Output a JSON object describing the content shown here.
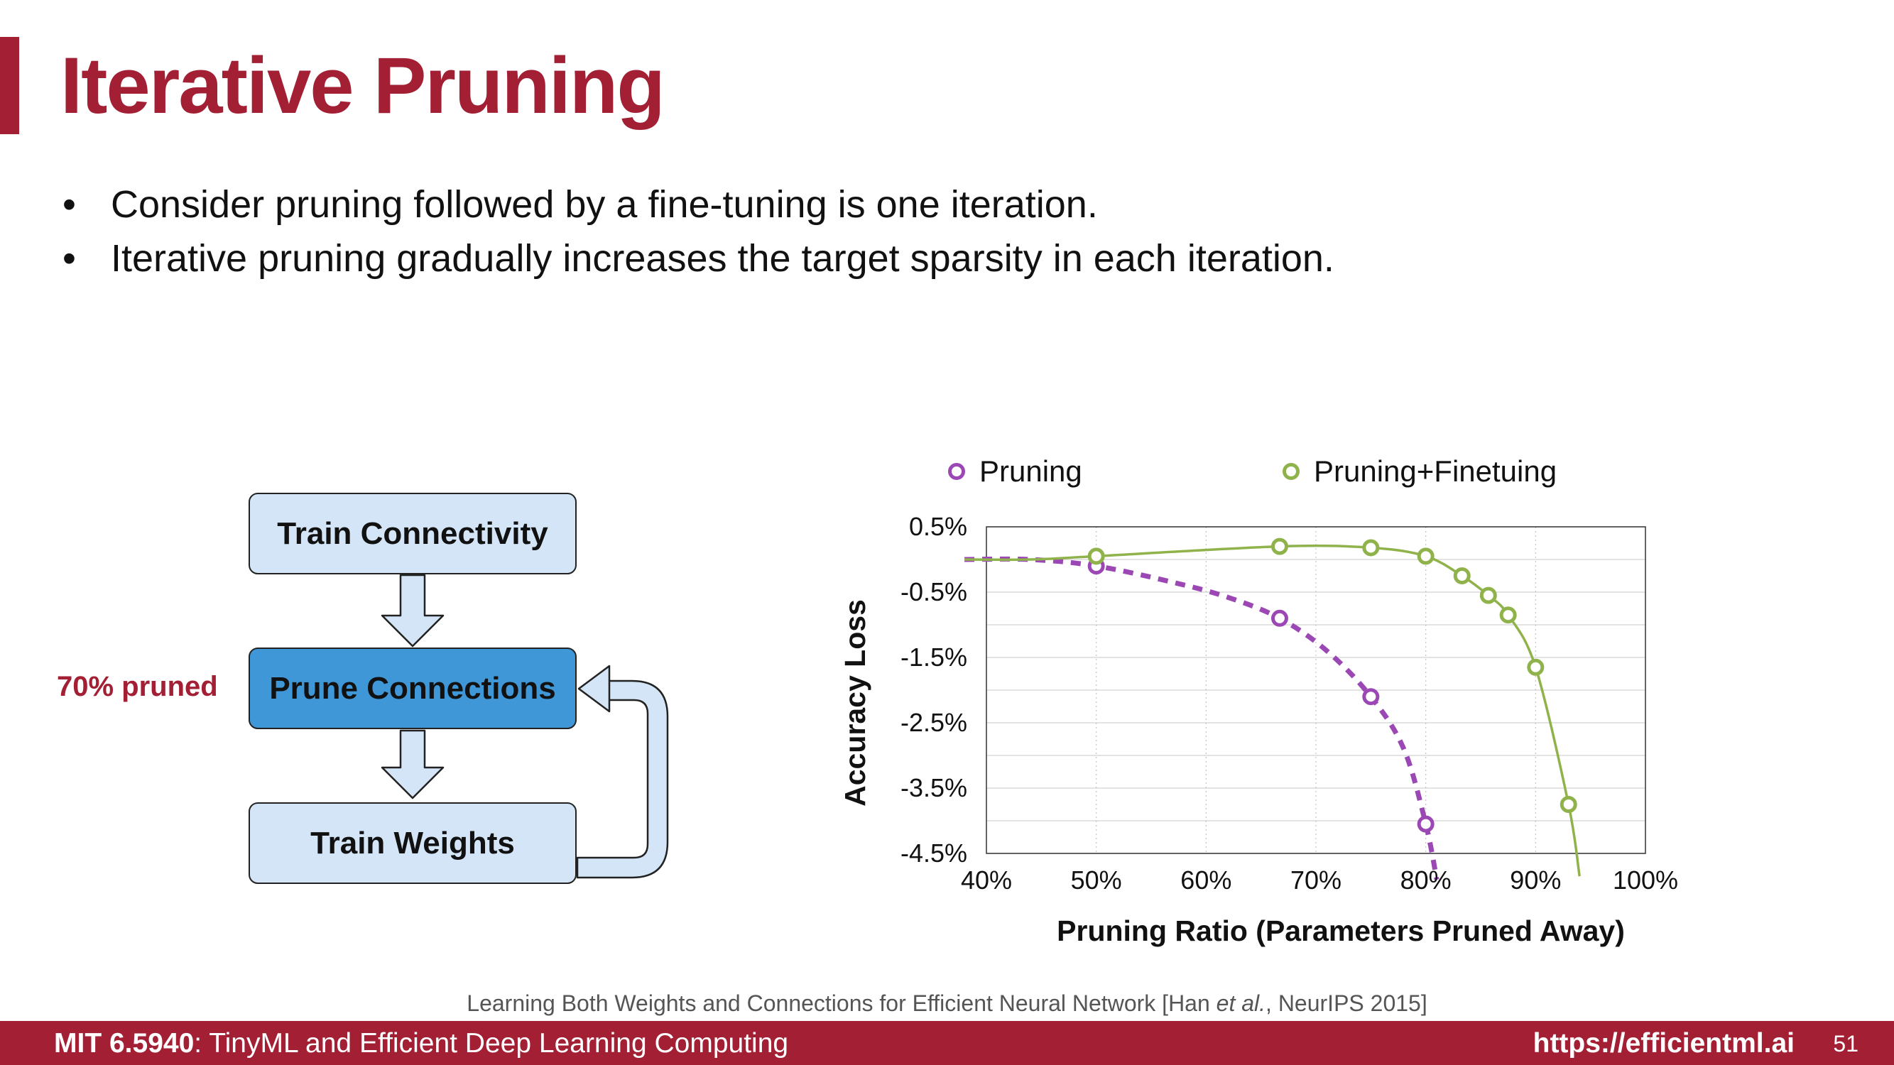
{
  "slide": {
    "title": "Iterative Pruning",
    "bullets": [
      "Consider pruning followed by a fine-tuning is one iteration.",
      "Iterative pruning gradually increases the target sparsity in each iteration."
    ]
  },
  "flowchart": {
    "boxes": [
      "Train Connectivity",
      "Prune Connections",
      "Train Weights"
    ],
    "note": "70% pruned",
    "colors": {
      "box": "#d3e5f6",
      "active": "#3f97d8",
      "note": "#a31f34"
    }
  },
  "citation": {
    "pre": "Learning Both Weights and Connections for Efficient Neural Network [Han ",
    "italic": "et al.",
    "post": ", NeurIPS 2015]"
  },
  "footer": {
    "course_code": "MIT 6.5940",
    "course_rest": ": TinyML and Efficient Deep Learning Computing",
    "url": "https://efficientml.ai",
    "page": "51"
  },
  "colors": {
    "accent": "#a31f34",
    "pruning": "#9b48b5",
    "finetune": "#8fb34a"
  },
  "chart_data": {
    "type": "line",
    "xlabel": "Pruning Ratio (Parameters Pruned Away)",
    "ylabel": "Accuracy Loss",
    "x_ticks": [
      "40%",
      "50%",
      "60%",
      "70%",
      "80%",
      "90%",
      "100%"
    ],
    "y_ticks": [
      "0.5%",
      "-0.5%",
      "-1.5%",
      "-2.5%",
      "-3.5%",
      "-4.5%"
    ],
    "xlim": [
      40,
      100
    ],
    "ylim": [
      -4.5,
      0.5
    ],
    "grid": true,
    "legend_position": "top",
    "series": [
      {
        "name": "Pruning",
        "style": "dashed",
        "color": "#9b48b5",
        "points": [
          [
            50,
            -0.1
          ],
          [
            66.7,
            -0.9
          ],
          [
            75,
            -2.1
          ],
          [
            80,
            -4.05
          ]
        ],
        "curve": [
          [
            38,
            0.0
          ],
          [
            44,
            0.0
          ],
          [
            50,
            -0.1
          ],
          [
            57,
            -0.35
          ],
          [
            62,
            -0.58
          ],
          [
            66.7,
            -0.9
          ],
          [
            71,
            -1.4
          ],
          [
            75,
            -2.1
          ],
          [
            78,
            -2.9
          ],
          [
            80,
            -4.05
          ],
          [
            81,
            -4.9
          ]
        ]
      },
      {
        "name": "Pruning+Finetuing",
        "style": "solid",
        "color": "#8fb34a",
        "points": [
          [
            50,
            0.05
          ],
          [
            66.7,
            0.2
          ],
          [
            75,
            0.18
          ],
          [
            80,
            0.05
          ],
          [
            83.3,
            -0.25
          ],
          [
            85.7,
            -0.55
          ],
          [
            87.5,
            -0.85
          ],
          [
            90,
            -1.65
          ],
          [
            93,
            -3.75
          ]
        ],
        "curve": [
          [
            38,
            0.0
          ],
          [
            44,
            0.0
          ],
          [
            50,
            0.05
          ],
          [
            66.7,
            0.2
          ],
          [
            75,
            0.18
          ],
          [
            80,
            0.05
          ],
          [
            83.3,
            -0.25
          ],
          [
            85.7,
            -0.55
          ],
          [
            87.5,
            -0.85
          ],
          [
            90,
            -1.65
          ],
          [
            93,
            -3.75
          ],
          [
            94,
            -4.85
          ]
        ]
      }
    ]
  }
}
